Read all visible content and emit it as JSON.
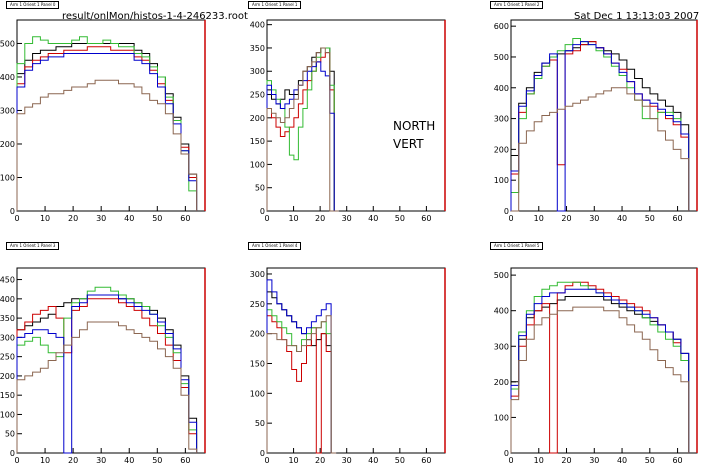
{
  "header": {
    "filename": "result/onlMon/histos-1-4-246233.root",
    "datetime": "Sat Dec  1 13:13:03 2007"
  },
  "annotations": [
    "NORTH",
    "VERT"
  ],
  "colors": {
    "black": "#000000",
    "red": "#cc0000",
    "green": "#33bb33",
    "blue": "#0000cc",
    "brown": "#8b6650",
    "frame_right": "#cc0000"
  },
  "chart_data": [
    {
      "type": "line",
      "panel_label": "Arm 1 Orient 1 Panel 0",
      "xlim": [
        0,
        67
      ],
      "ylim": [
        0,
        570
      ],
      "xticks": [
        0,
        10,
        20,
        30,
        40,
        50,
        60
      ],
      "yticks": [
        0,
        100,
        200,
        300,
        400,
        500
      ],
      "x_range": [
        0,
        64
      ],
      "series": [
        {
          "color": "black",
          "values": [
            410,
            450,
            470,
            480,
            480,
            490,
            490,
            500,
            500,
            500,
            500,
            500,
            500,
            500,
            500,
            480,
            470,
            440,
            400,
            350,
            280,
            200,
            110
          ]
        },
        {
          "color": "red",
          "values": [
            380,
            430,
            450,
            460,
            470,
            470,
            480,
            480,
            480,
            490,
            490,
            490,
            480,
            480,
            480,
            460,
            450,
            420,
            380,
            330,
            270,
            190,
            100
          ]
        },
        {
          "color": "green",
          "values": [
            440,
            500,
            520,
            510,
            500,
            500,
            500,
            510,
            520,
            500,
            500,
            510,
            500,
            490,
            490,
            470,
            460,
            430,
            400,
            340,
            270,
            180,
            60
          ]
        },
        {
          "color": "blue",
          "values": [
            370,
            420,
            440,
            450,
            460,
            460,
            470,
            470,
            470,
            470,
            470,
            470,
            470,
            470,
            470,
            450,
            440,
            410,
            370,
            320,
            260,
            180,
            90
          ]
        },
        {
          "color": "brown",
          "values": [
            290,
            310,
            320,
            340,
            350,
            350,
            360,
            370,
            370,
            380,
            390,
            390,
            390,
            380,
            380,
            370,
            350,
            330,
            320,
            290,
            230,
            170,
            110
          ]
        }
      ]
    },
    {
      "type": "line",
      "panel_label": "Arm 1 Orient 1 Panel 1",
      "xlim": [
        0,
        67
      ],
      "ylim": [
        0,
        410
      ],
      "xticks": [
        0,
        10,
        20,
        30,
        40,
        50,
        60
      ],
      "yticks": [
        0,
        50,
        100,
        150,
        200,
        250,
        300,
        350,
        400
      ],
      "x_range": [
        0,
        27
      ],
      "series": [
        {
          "color": "black",
          "values": [
            260,
            240,
            230,
            240,
            260,
            250,
            250,
            280,
            300,
            310,
            330,
            340,
            350,
            350,
            300,
            0
          ]
        },
        {
          "color": "red",
          "values": [
            220,
            200,
            180,
            160,
            170,
            180,
            200,
            230,
            260,
            280,
            300,
            320,
            330,
            340,
            260,
            0
          ]
        },
        {
          "color": "green",
          "values": [
            280,
            260,
            240,
            220,
            180,
            120,
            110,
            180,
            220,
            260,
            300,
            330,
            350,
            350,
            270,
            0
          ]
        },
        {
          "color": "blue",
          "values": [
            270,
            250,
            230,
            220,
            230,
            240,
            260,
            270,
            280,
            300,
            310,
            320,
            300,
            290,
            210,
            0
          ]
        },
        {
          "color": "brown",
          "values": [
            220,
            210,
            200,
            190,
            200,
            220,
            240,
            270,
            300,
            310,
            320,
            340,
            350,
            340,
            0,
            0
          ]
        }
      ]
    },
    {
      "type": "line",
      "panel_label": "Arm 1 Orient 1 Panel 2",
      "xlim": [
        0,
        67
      ],
      "ylim": [
        0,
        620
      ],
      "xticks": [
        0,
        10,
        20,
        30,
        40,
        50,
        60
      ],
      "yticks": [
        0,
        100,
        200,
        300,
        400,
        500,
        600
      ],
      "x_range": [
        0,
        64
      ],
      "series": [
        {
          "color": "black",
          "values": [
            180,
            350,
            400,
            450,
            480,
            500,
            510,
            520,
            530,
            540,
            550,
            530,
            520,
            510,
            490,
            460,
            430,
            400,
            380,
            360,
            340,
            320,
            280
          ]
        },
        {
          "color": "red",
          "values": [
            120,
            320,
            380,
            440,
            470,
            490,
            150,
            510,
            520,
            540,
            550,
            530,
            510,
            480,
            460,
            420,
            380,
            360,
            340,
            320,
            300,
            280,
            240
          ]
        },
        {
          "color": "green",
          "values": [
            60,
            300,
            380,
            430,
            470,
            500,
            520,
            540,
            560,
            550,
            540,
            520,
            500,
            470,
            440,
            400,
            360,
            300,
            300,
            320,
            320,
            300,
            250
          ]
        },
        {
          "color": "blue",
          "values": [
            130,
            340,
            390,
            440,
            480,
            510,
            0,
            520,
            540,
            550,
            540,
            530,
            510,
            480,
            450,
            420,
            380,
            360,
            350,
            330,
            310,
            290,
            250
          ]
        },
        {
          "color": "brown",
          "values": [
            0,
            220,
            260,
            290,
            310,
            320,
            330,
            340,
            350,
            360,
            370,
            380,
            390,
            400,
            400,
            380,
            360,
            340,
            300,
            260,
            230,
            200,
            170
          ]
        }
      ]
    },
    {
      "type": "line",
      "panel_label": "Arm 1 Orient 1 Panel 3",
      "xlim": [
        0,
        67
      ],
      "ylim": [
        0,
        480
      ],
      "xticks": [
        0,
        10,
        20,
        30,
        40,
        50,
        60
      ],
      "yticks": [
        0,
        50,
        100,
        150,
        200,
        250,
        300,
        350,
        400,
        450
      ],
      "x_range": [
        0,
        64
      ],
      "series": [
        {
          "color": "black",
          "values": [
            320,
            330,
            340,
            350,
            360,
            380,
            390,
            400,
            400,
            410,
            410,
            410,
            410,
            400,
            400,
            390,
            380,
            370,
            350,
            320,
            280,
            200,
            90
          ]
        },
        {
          "color": "red",
          "values": [
            320,
            340,
            360,
            370,
            380,
            350,
            260,
            370,
            380,
            400,
            400,
            400,
            400,
            390,
            380,
            370,
            350,
            330,
            310,
            280,
            240,
            170,
            50
          ]
        },
        {
          "color": "green",
          "values": [
            280,
            290,
            300,
            280,
            260,
            250,
            350,
            390,
            400,
            420,
            430,
            430,
            420,
            410,
            400,
            390,
            380,
            360,
            330,
            300,
            260,
            180,
            60
          ]
        },
        {
          "color": "blue",
          "values": [
            300,
            310,
            320,
            320,
            310,
            300,
            0,
            380,
            390,
            410,
            410,
            410,
            410,
            400,
            390,
            380,
            370,
            360,
            340,
            310,
            270,
            190,
            80
          ]
        },
        {
          "color": "brown",
          "values": [
            190,
            200,
            210,
            220,
            240,
            260,
            280,
            300,
            320,
            340,
            340,
            340,
            340,
            330,
            320,
            310,
            300,
            290,
            270,
            250,
            220,
            150,
            10
          ]
        }
      ]
    },
    {
      "type": "line",
      "panel_label": "Arm 1 Orient 1 Panel 4",
      "xlim": [
        0,
        67
      ],
      "ylim": [
        0,
        310
      ],
      "xticks": [
        0,
        10,
        20,
        30,
        40,
        50,
        60
      ],
      "yticks": [
        0,
        50,
        100,
        150,
        200,
        250,
        300
      ],
      "x_range": [
        0,
        26
      ],
      "series": [
        {
          "color": "black",
          "values": [
            270,
            260,
            250,
            240,
            230,
            220,
            210,
            200,
            190,
            180,
            190,
            200,
            180,
            0
          ]
        },
        {
          "color": "red",
          "values": [
            230,
            220,
            210,
            190,
            170,
            140,
            120,
            150,
            180,
            210,
            0,
            200,
            170,
            0
          ]
        },
        {
          "color": "green",
          "values": [
            240,
            230,
            220,
            210,
            200,
            180,
            170,
            190,
            200,
            210,
            210,
            220,
            200,
            0
          ]
        },
        {
          "color": "blue",
          "values": [
            290,
            270,
            250,
            240,
            230,
            220,
            210,
            200,
            210,
            220,
            230,
            240,
            250,
            0
          ]
        },
        {
          "color": "brown",
          "values": [
            200,
            200,
            190,
            190,
            180,
            180,
            170,
            180,
            190,
            200,
            210,
            220,
            230,
            0
          ]
        }
      ]
    },
    {
      "type": "line",
      "panel_label": "Arm 1 Orient 1 Panel 5",
      "xlim": [
        0,
        67
      ],
      "ylim": [
        0,
        520
      ],
      "xticks": [
        0,
        10,
        20,
        30,
        40,
        50,
        60
      ],
      "yticks": [
        0,
        100,
        200,
        300,
        400,
        500
      ],
      "x_range": [
        0,
        64
      ],
      "series": [
        {
          "color": "black",
          "values": [
            200,
            320,
            380,
            400,
            410,
            420,
            430,
            440,
            440,
            440,
            440,
            440,
            430,
            420,
            410,
            400,
            390,
            380,
            370,
            360,
            340,
            320,
            280
          ]
        },
        {
          "color": "red",
          "values": [
            160,
            300,
            360,
            400,
            420,
            0,
            450,
            470,
            480,
            480,
            470,
            460,
            450,
            440,
            430,
            420,
            410,
            400,
            380,
            360,
            340,
            310,
            260
          ]
        },
        {
          "color": "green",
          "values": [
            180,
            340,
            400,
            440,
            460,
            470,
            480,
            480,
            480,
            470,
            460,
            450,
            440,
            430,
            420,
            410,
            400,
            380,
            360,
            340,
            320,
            300,
            260
          ]
        },
        {
          "color": "blue",
          "values": [
            190,
            330,
            390,
            420,
            440,
            450,
            450,
            460,
            460,
            460,
            460,
            450,
            440,
            430,
            420,
            410,
            400,
            390,
            380,
            360,
            340,
            320,
            280
          ]
        },
        {
          "color": "brown",
          "values": [
            150,
            260,
            320,
            360,
            380,
            390,
            400,
            400,
            410,
            410,
            410,
            410,
            400,
            400,
            380,
            360,
            340,
            320,
            290,
            260,
            240,
            220,
            200
          ]
        }
      ]
    }
  ]
}
